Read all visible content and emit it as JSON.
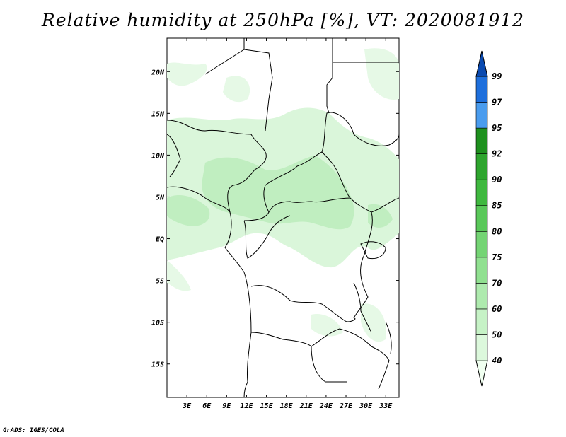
{
  "title": "Relative humidity at 250hPa [%], VT: 2020081912",
  "credit": "GrADS: IGES/COLA",
  "map": {
    "variable": "Relative humidity",
    "level": "250hPa",
    "units": "%",
    "valid_time": "2020081912",
    "lon_range": [
      0,
      35
    ],
    "lat_range": [
      -19,
      24
    ],
    "lat_labels": [
      "20N",
      "15N",
      "10N",
      "5N",
      "EQ",
      "5S",
      "10S",
      "15S"
    ],
    "lon_labels": [
      "3E",
      "6E",
      "9E",
      "12E",
      "15E",
      "18E",
      "21E",
      "24E",
      "27E",
      "30E",
      "33E"
    ]
  },
  "colorbar": {
    "levels": [
      "40",
      "50",
      "60",
      "70",
      "75",
      "80",
      "85",
      "90",
      "92",
      "95",
      "97",
      "99"
    ],
    "colors": [
      "#f0fff0",
      "#dcf8dc",
      "#c6f2c6",
      "#aeeaae",
      "#90e090",
      "#74d474",
      "#5ac85a",
      "#3fb83f",
      "#2ea52e",
      "#1e901e",
      "#4a9cee",
      "#1e6fdc",
      "#0a4ab0"
    ]
  },
  "colors": {
    "light_green": "#daf6da",
    "mid_green": "#c0eec0",
    "border": "#000000"
  }
}
